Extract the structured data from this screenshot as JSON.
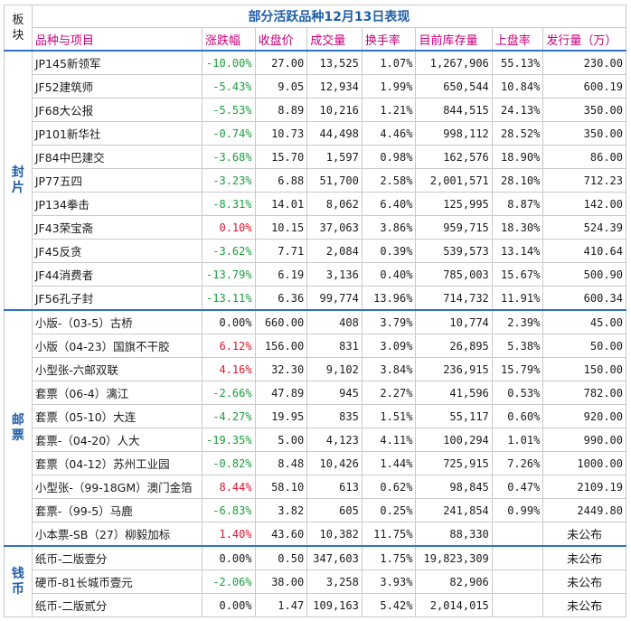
{
  "title": "部分活跃品种12月13日表现",
  "block_header": "板块",
  "headers": [
    "品种与项目",
    "涨跌幅",
    "收盘价",
    "成交量",
    "换手率",
    "目前库存量",
    "上盘率",
    "发行量（万）"
  ],
  "groups": [
    {
      "block": "封片",
      "rows": [
        {
          "name": "JP145新领军",
          "change": "-10.00%",
          "dir": "neg",
          "close": "27.00",
          "volume": "13,525",
          "turnover": "1.07%",
          "stock": "1,267,906",
          "upper": "55.13%",
          "issue": "230.00"
        },
        {
          "name": "JF52建筑师",
          "change": "-5.43%",
          "dir": "neg",
          "close": "9.05",
          "volume": "12,934",
          "turnover": "1.99%",
          "stock": "650,544",
          "upper": "10.84%",
          "issue": "600.19"
        },
        {
          "name": "JF68大公报",
          "change": "-5.53%",
          "dir": "neg",
          "close": "8.89",
          "volume": "10,216",
          "turnover": "1.21%",
          "stock": "844,515",
          "upper": "24.13%",
          "issue": "350.00"
        },
        {
          "name": "JP101新华社",
          "change": "-0.74%",
          "dir": "neg",
          "close": "10.73",
          "volume": "44,498",
          "turnover": "4.46%",
          "stock": "998,112",
          "upper": "28.52%",
          "issue": "350.00"
        },
        {
          "name": "JF84中巴建交",
          "change": "-3.68%",
          "dir": "neg",
          "close": "15.70",
          "volume": "1,597",
          "turnover": "0.98%",
          "stock": "162,576",
          "upper": "18.90%",
          "issue": "86.00"
        },
        {
          "name": "JP77五四",
          "change": "-3.23%",
          "dir": "neg",
          "close": "6.88",
          "volume": "51,700",
          "turnover": "2.58%",
          "stock": "2,001,571",
          "upper": "28.10%",
          "issue": "712.23"
        },
        {
          "name": "JP134拳击",
          "change": "-8.31%",
          "dir": "neg",
          "close": "14.01",
          "volume": "8,062",
          "turnover": "6.40%",
          "stock": "125,995",
          "upper": "8.87%",
          "issue": "142.00"
        },
        {
          "name": "JF43荣宝斋",
          "change": "0.10%",
          "dir": "pos",
          "close": "10.15",
          "volume": "37,063",
          "turnover": "3.86%",
          "stock": "959,715",
          "upper": "18.30%",
          "issue": "524.39"
        },
        {
          "name": "JF45反贪",
          "change": "-3.62%",
          "dir": "neg",
          "close": "7.71",
          "volume": "2,084",
          "turnover": "0.39%",
          "stock": "539,573",
          "upper": "13.14%",
          "issue": "410.64"
        },
        {
          "name": "JF44消费者",
          "change": "-13.79%",
          "dir": "neg",
          "close": "6.19",
          "volume": "3,136",
          "turnover": "0.40%",
          "stock": "785,003",
          "upper": "15.67%",
          "issue": "500.90"
        },
        {
          "name": "JF56孔子封",
          "change": "-13.11%",
          "dir": "neg",
          "close": "6.36",
          "volume": "99,774",
          "turnover": "13.96%",
          "stock": "714,732",
          "upper": "11.91%",
          "issue": "600.34"
        }
      ]
    },
    {
      "block": "邮票",
      "rows": [
        {
          "name": "小版-（03-5）古桥",
          "change": "0.00%",
          "dir": "zero",
          "close": "660.00",
          "volume": "408",
          "turnover": "3.79%",
          "stock": "10,774",
          "upper": "2.39%",
          "issue": "45.00"
        },
        {
          "name": "小版（04-23）国旗不干胶",
          "change": "6.12%",
          "dir": "pos",
          "close": "156.00",
          "volume": "831",
          "turnover": "3.09%",
          "stock": "26,895",
          "upper": "5.38%",
          "issue": "50.00"
        },
        {
          "name": "小型张-六邮双联",
          "change": "4.16%",
          "dir": "pos",
          "close": "32.30",
          "volume": "9,102",
          "turnover": "3.84%",
          "stock": "236,915",
          "upper": "15.79%",
          "issue": "150.00"
        },
        {
          "name": "套票（06-4）漓江",
          "change": "-2.66%",
          "dir": "neg",
          "close": "47.89",
          "volume": "945",
          "turnover": "2.27%",
          "stock": "41,596",
          "upper": "0.53%",
          "issue": "782.00"
        },
        {
          "name": "套票（05-10）大连",
          "change": "-4.27%",
          "dir": "neg",
          "close": "19.95",
          "volume": "835",
          "turnover": "1.51%",
          "stock": "55,117",
          "upper": "0.60%",
          "issue": "920.00"
        },
        {
          "name": "套票-（04-20）人大",
          "change": "-19.35%",
          "dir": "neg",
          "close": "5.00",
          "volume": "4,123",
          "turnover": "4.11%",
          "stock": "100,294",
          "upper": "1.01%",
          "issue": "990.00"
        },
        {
          "name": "套票（04-12）苏州工业园",
          "change": "-0.82%",
          "dir": "neg",
          "close": "8.48",
          "volume": "10,426",
          "turnover": "1.44%",
          "stock": "725,915",
          "upper": "7.26%",
          "issue": "1000.00"
        },
        {
          "name": "小型张-（99-18GM）澳门金箔",
          "change": "8.44%",
          "dir": "pos",
          "close": "58.10",
          "volume": "613",
          "turnover": "0.62%",
          "stock": "98,845",
          "upper": "0.47%",
          "issue": "2109.19"
        },
        {
          "name": "套票-（99-5）马鹿",
          "change": "-6.83%",
          "dir": "neg",
          "close": "3.82",
          "volume": "605",
          "turnover": "0.25%",
          "stock": "241,854",
          "upper": "0.99%",
          "issue": "2449.80"
        },
        {
          "name": "小本票-SB（27）柳毅加标",
          "change": "1.40%",
          "dir": "pos",
          "close": "43.60",
          "volume": "10,382",
          "turnover": "11.75%",
          "stock": "88,330",
          "upper": "",
          "issue": "未公布"
        }
      ]
    },
    {
      "block": "钱币",
      "rows": [
        {
          "name": "纸币-二版壹分",
          "change": "0.00%",
          "dir": "zero",
          "close": "0.50",
          "volume": "347,603",
          "turnover": "1.75%",
          "stock": "19,823,309",
          "upper": "",
          "issue": "未公布"
        },
        {
          "name": "硬币-81长城币壹元",
          "change": "-2.06%",
          "dir": "neg",
          "close": "38.00",
          "volume": "3,258",
          "turnover": "3.93%",
          "stock": "82,906",
          "upper": "",
          "issue": "未公布"
        },
        {
          "name": "纸币-二版贰分",
          "change": "0.00%",
          "dir": "zero",
          "close": "1.47",
          "volume": "109,163",
          "turnover": "5.42%",
          "stock": "2,014,015",
          "upper": "",
          "issue": "未公布"
        }
      ]
    }
  ],
  "colors": {
    "negative": "#1b9e3a",
    "positive": "#e0142b",
    "accent": "#1f5fa8",
    "header": "#c8007a"
  }
}
